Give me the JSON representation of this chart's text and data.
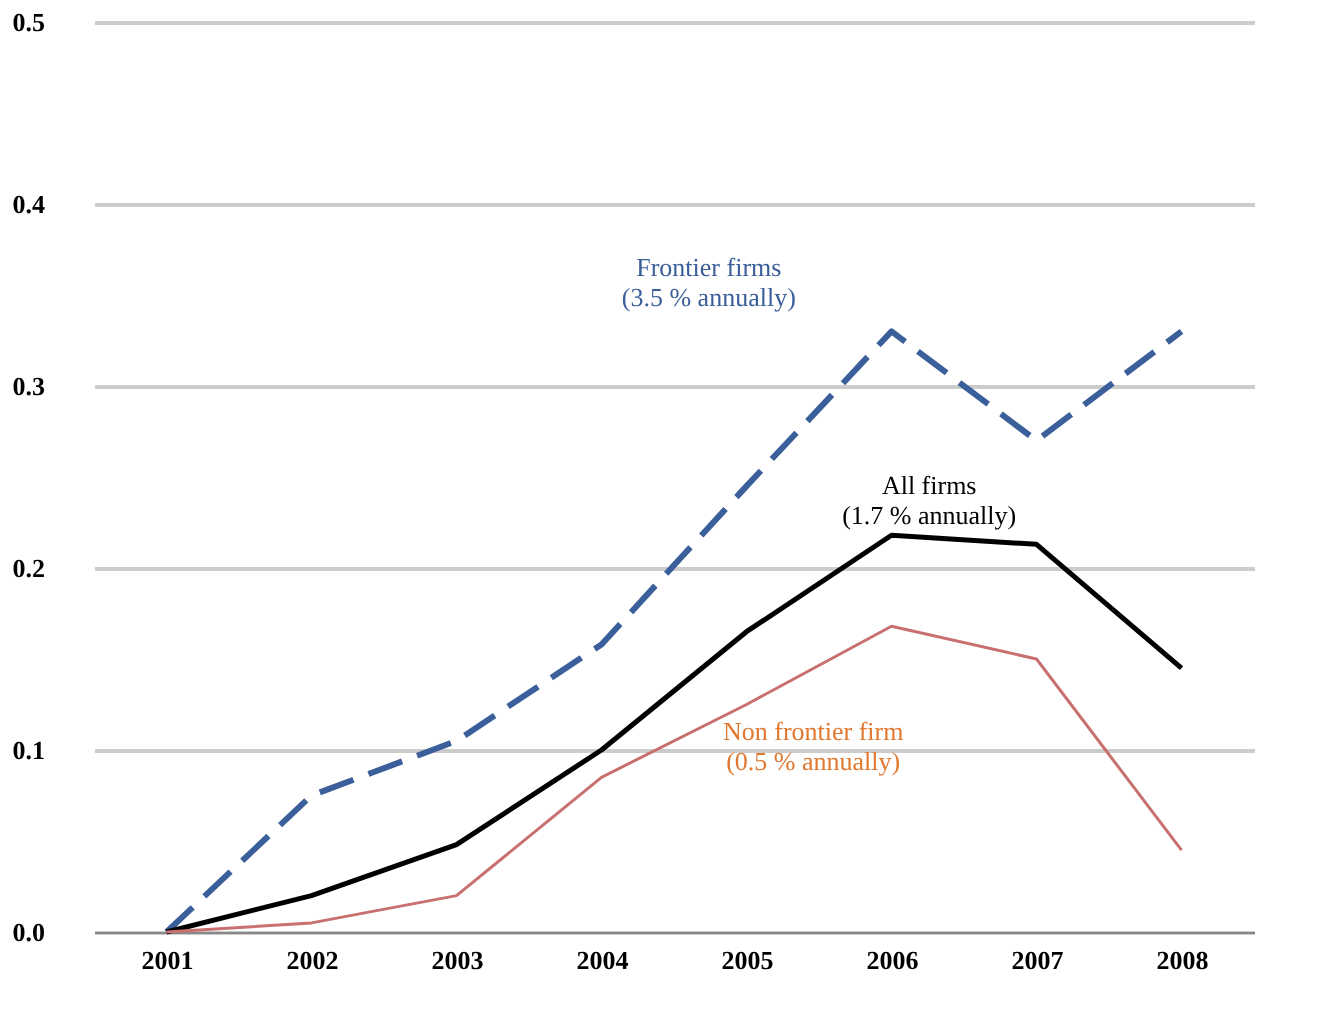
{
  "chart_data": {
    "type": "line",
    "categories": [
      "2001",
      "2002",
      "2003",
      "2004",
      "2005",
      "2006",
      "2007",
      "2008"
    ],
    "series": [
      {
        "color": "#3a5f9a",
        "line_style": "dashed",
        "values": [
          0,
          0.075,
          0.105,
          0.158,
          0.245,
          0.33,
          0.27,
          0.33
        ]
      },
      {
        "color": "#000000",
        "line_style": "solid",
        "values": [
          0,
          0.02,
          0.048,
          0.1,
          0.165,
          0.218,
          0.213,
          0.145
        ]
      },
      {
        "color": "#c87070",
        "line_style": "solid",
        "values": [
          0,
          0.005,
          0.02,
          0.085,
          0.125,
          0.168,
          0.15,
          0.045
        ]
      }
    ],
    "annotations": [
      "Frontier firms\n(3.5 % annually)",
      "All firms\n(1.7 % annually)",
      "Non frontier firm\n(0.5 % annually)"
    ],
    "ylim": [
      0,
      0.5
    ],
    "yticks": [
      {
        "value": 0,
        "label": "0.0"
      },
      0.1,
      0.2,
      0.3,
      0.4,
      0.5
    ],
    "grid": "y"
  }
}
